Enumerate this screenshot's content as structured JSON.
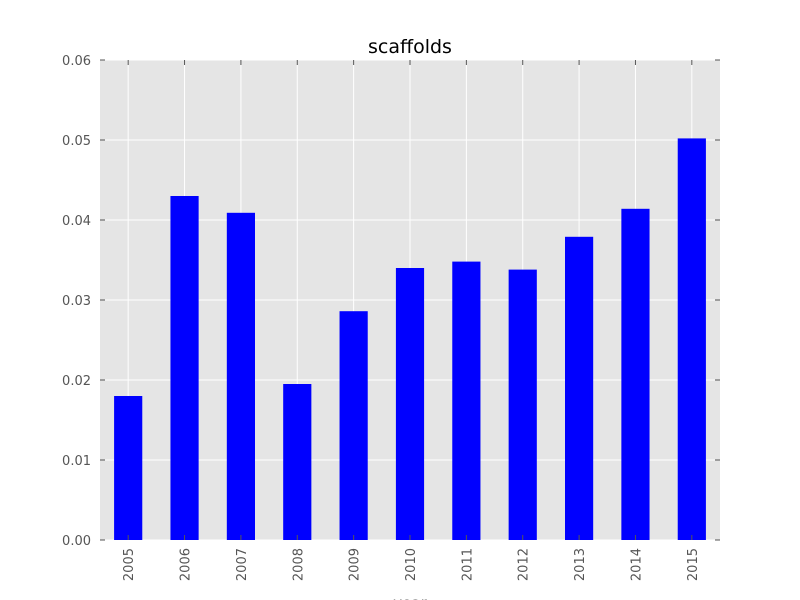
{
  "chart_data": {
    "type": "bar",
    "title": "scaffolds",
    "xlabel": "year",
    "ylabel": "",
    "categories": [
      "2005",
      "2006",
      "2007",
      "2008",
      "2009",
      "2010",
      "2011",
      "2012",
      "2013",
      "2014",
      "2015"
    ],
    "values": [
      0.018,
      0.043,
      0.0409,
      0.0195,
      0.0286,
      0.034,
      0.0348,
      0.0338,
      0.0379,
      0.0414,
      0.0502
    ],
    "ylim": [
      0,
      0.06
    ],
    "yticks": [
      "0.00",
      "0.01",
      "0.02",
      "0.03",
      "0.04",
      "0.05",
      "0.06"
    ],
    "grid": true,
    "colors": {
      "bar": "#0000ff",
      "plot_background": "#e5e5e5",
      "grid": "#ffffff",
      "tick": "#555555"
    }
  }
}
